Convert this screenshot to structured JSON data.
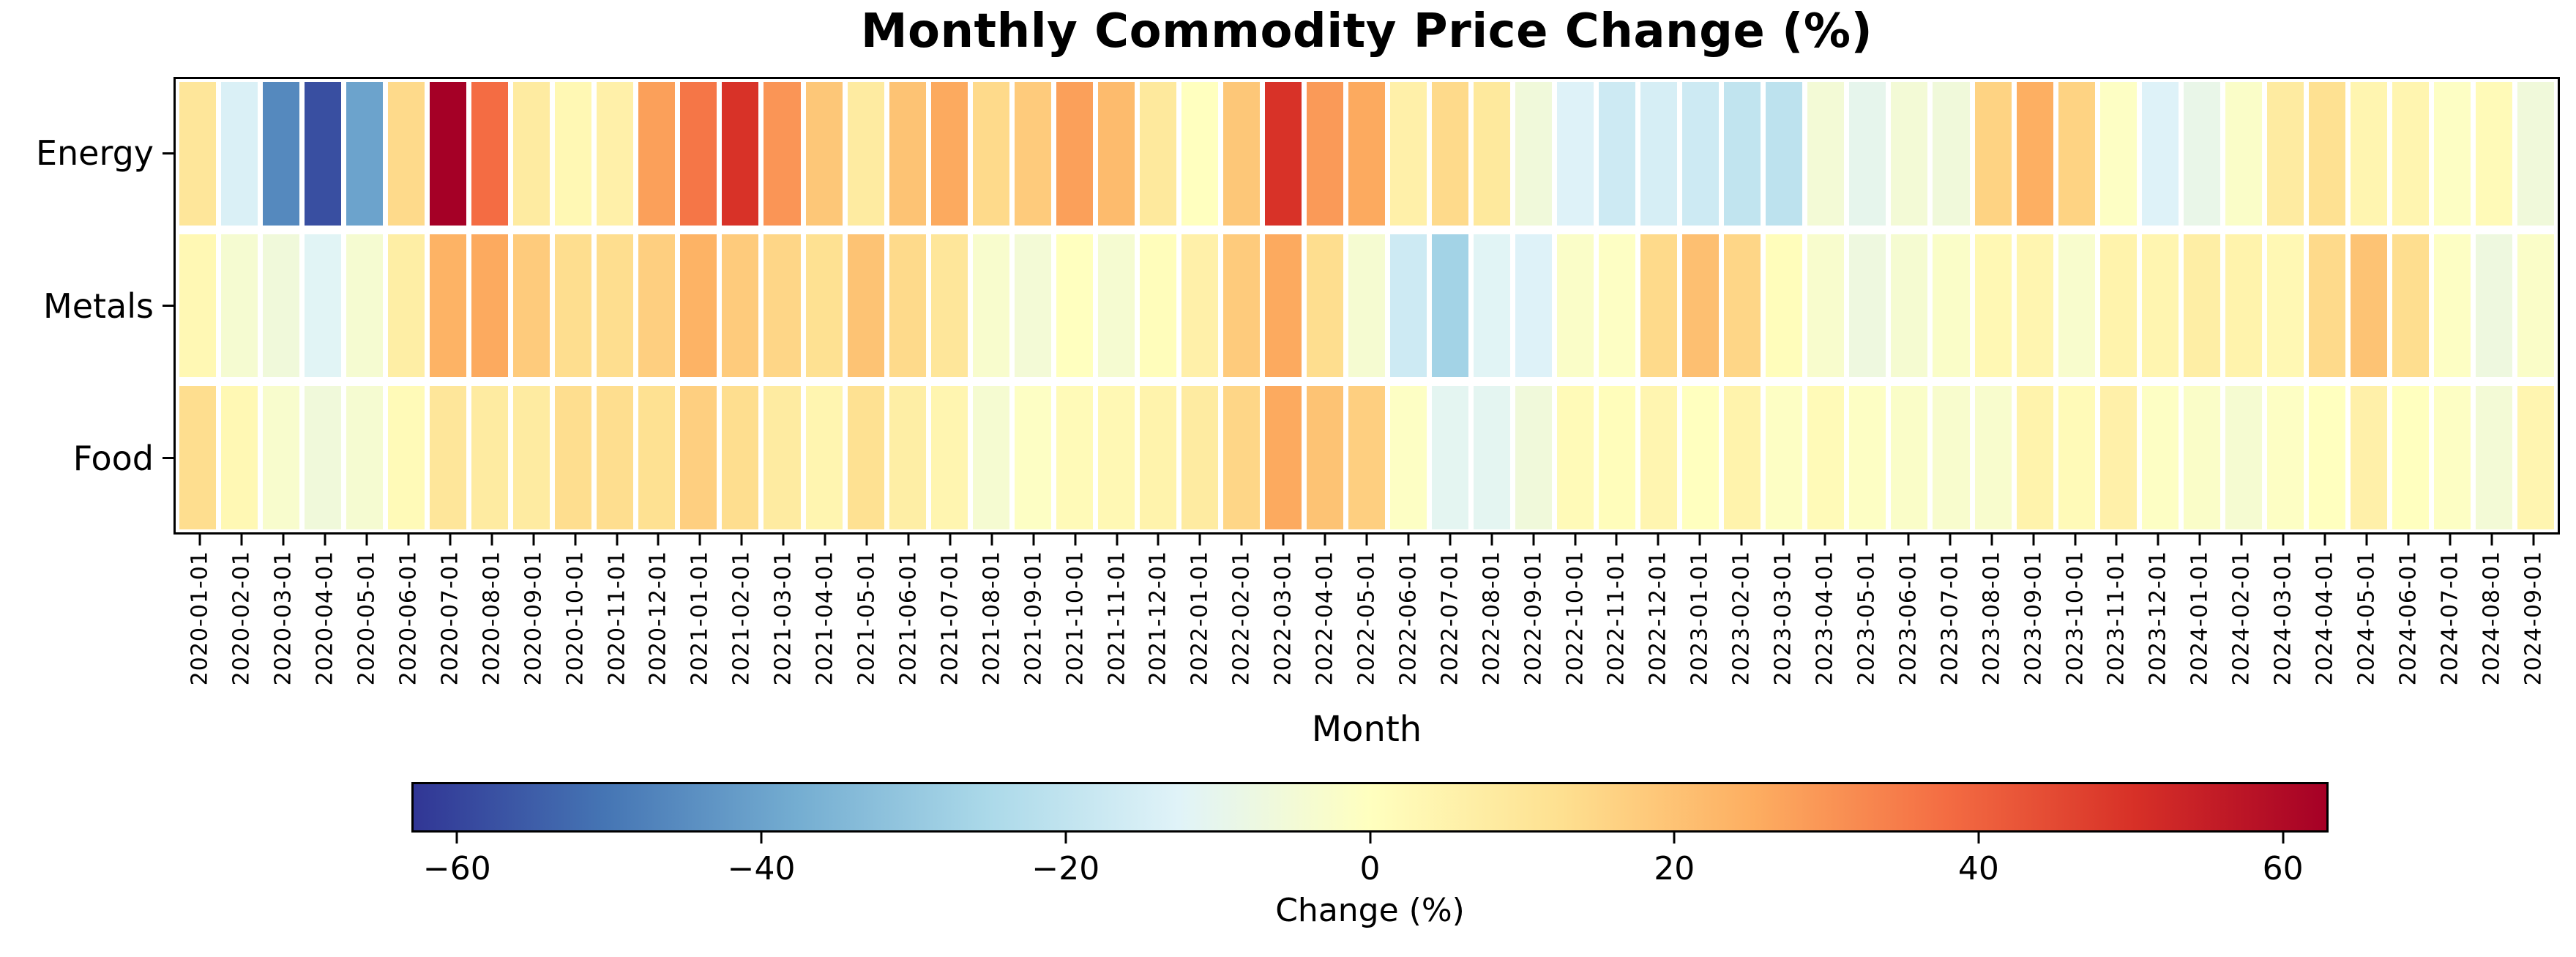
{
  "title": "Monthly Commodity Price Change (%)",
  "xlabel": "Month",
  "colorbar": {
    "label": "Change (%)",
    "ticks": [
      -60,
      -40,
      -20,
      0,
      20,
      40,
      60
    ]
  },
  "chart_data": {
    "type": "heatmap",
    "title": "Monthly Commodity Price Change (%)",
    "xlabel": "Month",
    "colorbar_label": "Change (%)",
    "rows": [
      "Energy",
      "Metals",
      "Food"
    ],
    "columns": [
      "2020-01-01",
      "2020-02-01",
      "2020-03-01",
      "2020-04-01",
      "2020-05-01",
      "2020-06-01",
      "2020-07-01",
      "2020-08-01",
      "2020-09-01",
      "2020-10-01",
      "2020-11-01",
      "2020-12-01",
      "2021-01-01",
      "2021-02-01",
      "2021-03-01",
      "2021-04-01",
      "2021-05-01",
      "2021-06-01",
      "2021-07-01",
      "2021-08-01",
      "2021-09-01",
      "2021-10-01",
      "2021-11-01",
      "2021-12-01",
      "2022-01-01",
      "2022-02-01",
      "2022-03-01",
      "2022-04-01",
      "2022-05-01",
      "2022-06-01",
      "2022-07-01",
      "2022-08-01",
      "2022-09-01",
      "2022-10-01",
      "2022-11-01",
      "2022-12-01",
      "2023-01-01",
      "2023-02-01",
      "2023-03-01",
      "2023-04-01",
      "2023-05-01",
      "2023-06-01",
      "2023-07-01",
      "2023-08-01",
      "2023-09-01",
      "2023-10-01",
      "2023-11-01",
      "2023-12-01",
      "2024-01-01",
      "2024-02-01",
      "2024-03-01",
      "2024-04-01",
      "2024-05-01",
      "2024-06-01",
      "2024-07-01",
      "2024-08-01",
      "2024-09-01"
    ],
    "series": [
      {
        "name": "Energy",
        "values": [
          10,
          -14,
          -46,
          -58,
          -40,
          14,
          63,
          38,
          8,
          3,
          6,
          28,
          36,
          50,
          30,
          19,
          8,
          20,
          26,
          14,
          18,
          28,
          22,
          9,
          0,
          19,
          50,
          29,
          26,
          6,
          14,
          9,
          -6,
          -13,
          -17,
          -15,
          -17,
          -20,
          -21,
          -5,
          -10,
          -5,
          -6,
          16,
          25,
          16,
          -1,
          -13,
          -9,
          -2,
          8,
          12,
          4,
          4,
          -1,
          2,
          -6
        ]
      },
      {
        "name": "Metals",
        "values": [
          3,
          -4,
          -6,
          -12,
          -4,
          7,
          24,
          26,
          18,
          13,
          13,
          17,
          24,
          18,
          15,
          12,
          20,
          14,
          10,
          -3,
          -5,
          0,
          -4,
          1,
          6,
          18,
          26,
          13,
          -4,
          -17,
          -27,
          -12,
          -13,
          -2,
          -1,
          14,
          21,
          15,
          1,
          -3,
          -7,
          -4,
          -2,
          3,
          4,
          -3,
          5,
          4,
          7,
          5,
          3,
          14,
          20,
          13,
          -1,
          -7,
          -2
        ]
      },
      {
        "name": "Food",
        "values": [
          13,
          3,
          -3,
          -6,
          -4,
          2,
          10,
          8,
          8,
          13,
          13,
          12,
          17,
          13,
          8,
          4,
          12,
          7,
          4,
          -4,
          -1,
          2,
          3,
          5,
          8,
          15,
          26,
          20,
          17,
          -1,
          -11,
          -11,
          -6,
          2,
          1,
          4,
          0,
          5,
          -1,
          2,
          -1,
          -2,
          -3,
          -3,
          5,
          2,
          6,
          -1,
          -2,
          -4,
          -1,
          0,
          6,
          0,
          -1,
          -5,
          4
        ]
      }
    ],
    "colormap": "RdYlBu_r",
    "colormap_anchors": [
      "#313695",
      "#4575b4",
      "#74add1",
      "#abd9e9",
      "#e0f3f8",
      "#ffffbf",
      "#fee090",
      "#fdae61",
      "#f46d43",
      "#d73027",
      "#a50026"
    ],
    "vmin": -63,
    "vmax": 63,
    "grid": false,
    "legend": "colorbar-bottom"
  }
}
